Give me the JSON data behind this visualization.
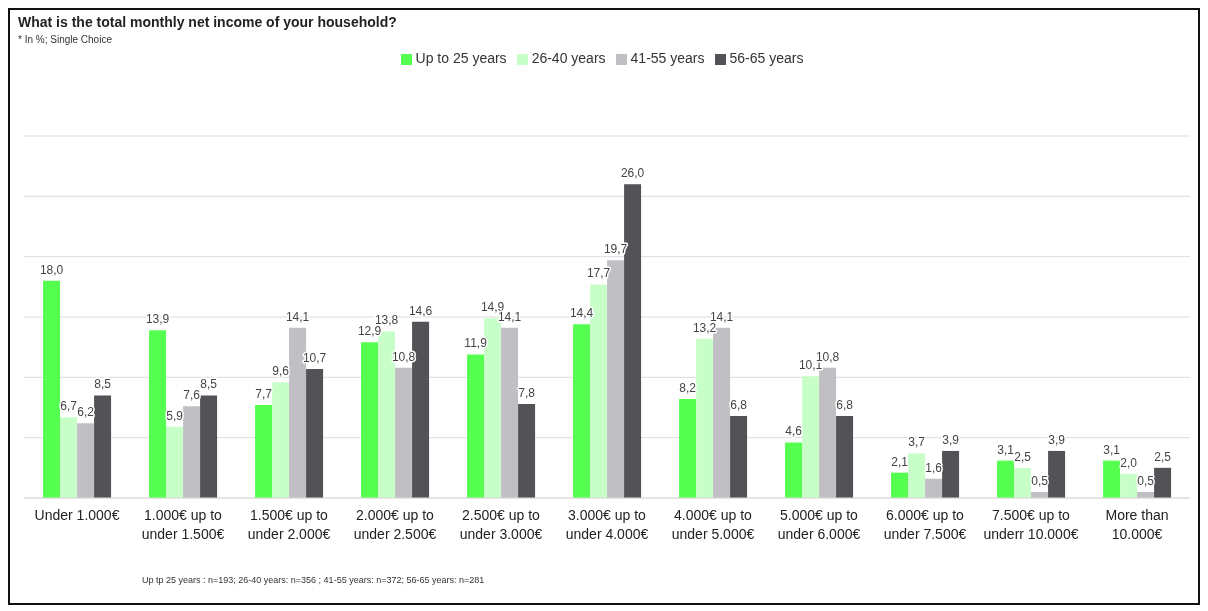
{
  "chart_data": {
    "type": "bar",
    "title": "What is the total monthly net income of your household?",
    "subtitle": "* In %; Single Choice",
    "categories": [
      "Under 1.000€",
      "1.000€ up to under 1.500€",
      "1.500€ up to under 2.000€",
      "2.000€ up to under 2.500€",
      "2.500€ up to under 3.000€",
      "3.000€ up to under 4.000€",
      "4.000€ up to under 5.000€",
      "5.000€ up to under 6.000€",
      "6.000€ up to under 7.500€",
      "7.500€ up to underr 10.000€",
      "More than 10.000€"
    ],
    "series": [
      {
        "name": "Up to 25 years",
        "color": "#55ff4f",
        "values": [
          18.0,
          13.9,
          7.7,
          12.9,
          11.9,
          14.4,
          8.2,
          4.6,
          2.1,
          3.1,
          3.1
        ],
        "value_labels": [
          "18,0",
          "13,9",
          "7,7",
          "12,9",
          "11,9",
          "14,4",
          "8,2",
          "4,6",
          "2,1",
          "3,1",
          "3,1"
        ]
      },
      {
        "name": "26-40 years",
        "color": "#c8ffc8",
        "values": [
          6.7,
          5.9,
          9.6,
          13.8,
          14.9,
          17.7,
          13.2,
          10.1,
          3.7,
          2.5,
          2.0
        ],
        "value_labels": [
          "6,7",
          "5,9",
          "9,6",
          "13,8",
          "14,9",
          "17,7",
          "13,2",
          "10,1",
          "3,7",
          "2,5",
          "2,0"
        ]
      },
      {
        "name": "41-55 years",
        "color": "#c0bfc4",
        "values": [
          6.2,
          7.6,
          14.1,
          10.8,
          14.1,
          19.7,
          14.1,
          10.8,
          1.6,
          0.5,
          0.5
        ],
        "value_labels": [
          "6,2",
          "7,6",
          "14,1",
          "10,8",
          "14,1",
          "19,7",
          "14,1",
          "10,8",
          "1,6",
          "0,5",
          "0,5"
        ]
      },
      {
        "name": "56-65 years",
        "color": "#525257",
        "values": [
          8.5,
          8.5,
          10.7,
          14.6,
          7.8,
          26.0,
          6.8,
          6.8,
          3.9,
          3.9,
          2.5
        ],
        "value_labels": [
          "8,5",
          "8,5",
          "10,7",
          "14,6",
          "7,8",
          "26,0",
          "6,8",
          "6,8",
          "3,9",
          "3,9",
          "2,5"
        ]
      }
    ],
    "ylim": [
      0,
      30
    ],
    "yticks": [
      {
        "value": 0,
        "label": null
      },
      {
        "value": 5,
        "label": null
      },
      {
        "value": 10,
        "label": null
      },
      {
        "value": 15,
        "label": null
      },
      {
        "value": 20,
        "label": null
      },
      {
        "value": 25,
        "label": null
      },
      {
        "value": 30,
        "label": null
      }
    ],
    "tick_labels": "x",
    "grid": "y",
    "legend": "top",
    "annotations": [
      "Up tp 25 years : n=193; 26-40 years: n=356 ; 41-55 years: n=372; 56-65 years: n=281"
    ]
  }
}
